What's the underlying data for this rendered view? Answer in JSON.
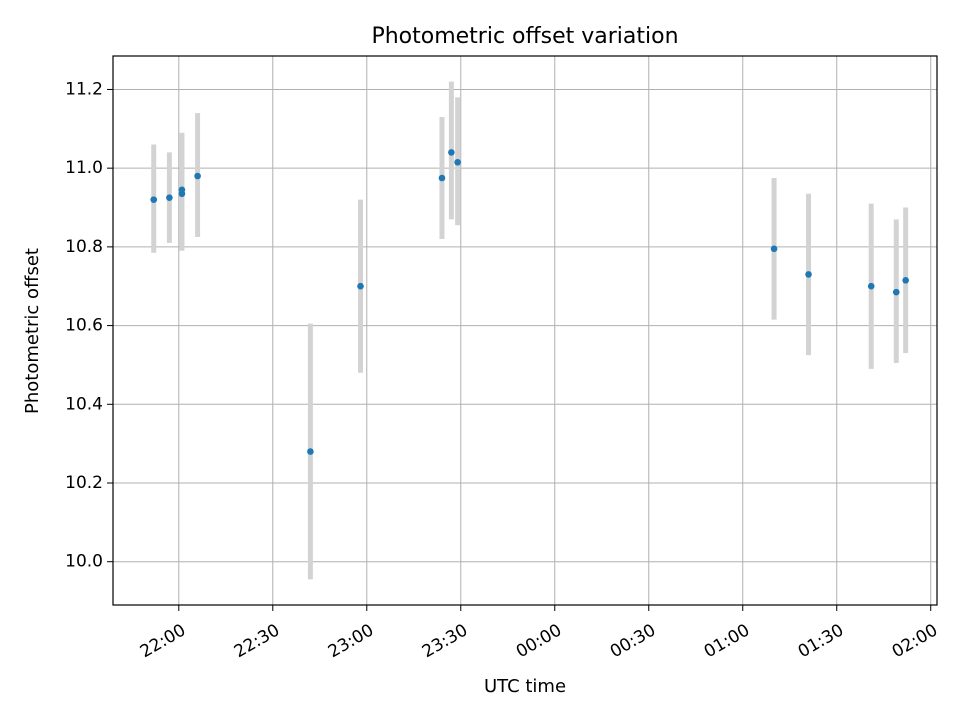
{
  "chart_data": {
    "type": "scatter",
    "title": "Photometric offset variation",
    "xlabel": "UTC time",
    "ylabel": "Photometric offset",
    "x_axis_kind": "time",
    "xlim": [
      "21:39",
      "02:02"
    ],
    "ylim": [
      9.89,
      11.285
    ],
    "x_ticks": [
      "22:00",
      "22:30",
      "23:00",
      "23:30",
      "00:00",
      "00:30",
      "01:00",
      "01:30",
      "02:00"
    ],
    "y_ticks": [
      10.0,
      10.2,
      10.4,
      10.6,
      10.8,
      11.0,
      11.2
    ],
    "y_tick_labels": [
      "10.0",
      "10.2",
      "10.4",
      "10.6",
      "10.8",
      "11.0",
      "11.2"
    ],
    "grid": true,
    "point_color": "#1f77b4",
    "errorbar_color": "#d3d3d3",
    "points": [
      {
        "x": "21:52",
        "y": 10.92,
        "ylow": 10.785,
        "yhigh": 11.06
      },
      {
        "x": "21:57",
        "y": 10.925,
        "ylow": 10.81,
        "yhigh": 11.04
      },
      {
        "x": "22:01",
        "y": 10.935,
        "ylow": 10.79,
        "yhigh": 11.09
      },
      {
        "x": "22:01",
        "y": 10.945,
        "ylow": 10.8,
        "yhigh": 11.08
      },
      {
        "x": "22:06",
        "y": 10.98,
        "ylow": 10.825,
        "yhigh": 11.14
      },
      {
        "x": "22:42",
        "y": 10.28,
        "ylow": 9.955,
        "yhigh": 10.605
      },
      {
        "x": "22:58",
        "y": 10.7,
        "ylow": 10.48,
        "yhigh": 10.92
      },
      {
        "x": "23:24",
        "y": 10.975,
        "ylow": 10.82,
        "yhigh": 11.13
      },
      {
        "x": "23:27",
        "y": 11.04,
        "ylow": 10.87,
        "yhigh": 11.22
      },
      {
        "x": "23:29",
        "y": 11.015,
        "ylow": 10.855,
        "yhigh": 11.18
      },
      {
        "x": "01:10",
        "y": 10.795,
        "ylow": 10.615,
        "yhigh": 10.975
      },
      {
        "x": "01:21",
        "y": 10.73,
        "ylow": 10.525,
        "yhigh": 10.935
      },
      {
        "x": "01:41",
        "y": 10.7,
        "ylow": 10.49,
        "yhigh": 10.91
      },
      {
        "x": "01:49",
        "y": 10.685,
        "ylow": 10.505,
        "yhigh": 10.87
      },
      {
        "x": "01:52",
        "y": 10.715,
        "ylow": 10.53,
        "yhigh": 10.9
      }
    ]
  }
}
